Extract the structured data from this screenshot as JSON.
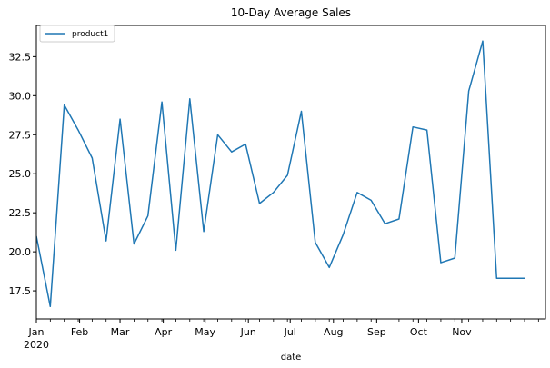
{
  "chart_data": {
    "type": "line",
    "title": "10-Day Average Sales",
    "xlabel": "date",
    "ylabel": "",
    "x_start_label": "2020-01-01",
    "x_end_label": "2020-12-31",
    "ylim": [
      15.7,
      34.5
    ],
    "yticks": [
      17.5,
      20.0,
      22.5,
      25.0,
      27.5,
      30.0,
      32.5
    ],
    "ytick_labels": [
      "17.5",
      "20.0",
      "22.5",
      "25.0",
      "27.5",
      "30.0",
      "32.5"
    ],
    "xticks": [
      {
        "date": "2020-01-01",
        "label": "Jan",
        "sublabel": "2020"
      },
      {
        "date": "2020-02-01",
        "label": "Feb"
      },
      {
        "date": "2020-03-01",
        "label": "Mar"
      },
      {
        "date": "2020-04-01",
        "label": "Apr"
      },
      {
        "date": "2020-05-01",
        "label": "May"
      },
      {
        "date": "2020-06-01",
        "label": "Jun"
      },
      {
        "date": "2020-07-01",
        "label": "Jul"
      },
      {
        "date": "2020-08-01",
        "label": "Aug"
      },
      {
        "date": "2020-09-01",
        "label": "Sep"
      },
      {
        "date": "2020-10-01",
        "label": "Oct"
      },
      {
        "date": "2020-11-01",
        "label": "Nov"
      }
    ],
    "legend": {
      "position": "upper-left"
    },
    "grid": false,
    "series": [
      {
        "name": "product1",
        "color": "#1f77b4",
        "x": [
          "2020-01-01",
          "2020-01-11",
          "2020-01-21",
          "2020-01-31",
          "2020-02-10",
          "2020-02-20",
          "2020-03-01",
          "2020-03-11",
          "2020-03-21",
          "2020-03-31",
          "2020-04-10",
          "2020-04-20",
          "2020-04-30",
          "2020-05-10",
          "2020-05-20",
          "2020-05-30",
          "2020-06-09",
          "2020-06-19",
          "2020-06-29",
          "2020-07-09",
          "2020-07-19",
          "2020-07-29",
          "2020-08-08",
          "2020-08-18",
          "2020-08-28",
          "2020-09-07",
          "2020-09-17",
          "2020-09-27",
          "2020-10-07",
          "2020-10-17",
          "2020-10-27",
          "2020-11-06",
          "2020-11-16",
          "2020-11-26",
          "2020-12-06",
          "2020-12-16"
        ],
        "y": [
          21.0,
          16.5,
          29.4,
          27.8,
          26.0,
          20.7,
          28.5,
          20.5,
          22.3,
          29.6,
          20.1,
          29.8,
          21.3,
          27.5,
          26.4,
          26.9,
          23.1,
          23.8,
          24.9,
          29.0,
          20.6,
          19.0,
          21.1,
          23.8,
          23.3,
          21.8,
          22.1,
          28.0,
          27.8,
          19.3,
          19.6,
          30.3,
          33.5,
          18.3,
          18.3,
          18.3
        ]
      }
    ]
  }
}
